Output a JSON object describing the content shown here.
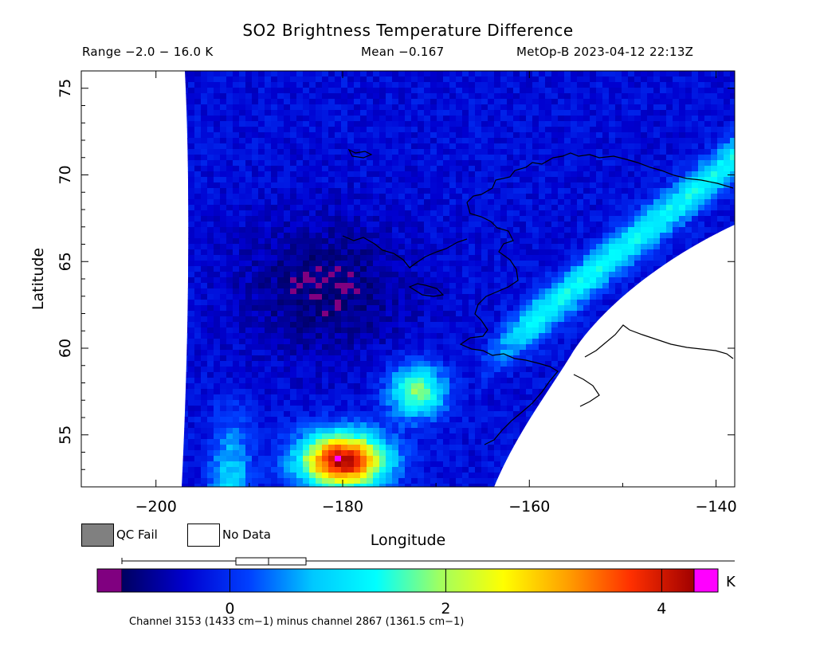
{
  "header": {
    "title": "SO2 Brightness Temperature Difference",
    "range": "Range −2.0 − 16.0 K",
    "mean": "Mean −0.167",
    "source": "MetOp-B 2023-04-12 22:13Z"
  },
  "legend": {
    "qc_fail": "QC Fail",
    "no_data": "No Data",
    "qc_fail_color": "#808080",
    "no_data_color": "#ffffff"
  },
  "colorbar": {
    "unit": "K",
    "ticks": [
      "0",
      "2",
      "4"
    ],
    "tick_values": [
      0,
      2,
      4
    ],
    "range": [
      -1.0,
      4.3
    ],
    "under_color": "#800080",
    "over_color": "#ff00ff",
    "colormap": [
      "#000060",
      "#0000d0",
      "#0040ff",
      "#00c8ff",
      "#00ffff",
      "#a0ff60",
      "#ffff00",
      "#ffa000",
      "#ff3000",
      "#a00000"
    ]
  },
  "footnote": "Channel 3153 (1433 cm−1) minus channel 2867 (1361.5 cm−1)",
  "chart_data": {
    "type": "heatmap",
    "title": "SO2 Brightness Temperature Difference",
    "xlabel": "Longitude",
    "ylabel": "Latitude",
    "xlim": [
      -208,
      -138
    ],
    "ylim": [
      52,
      76
    ],
    "x_ticks": [
      -200,
      -180,
      -160,
      -140
    ],
    "y_ticks": [
      55,
      60,
      65,
      70,
      75
    ],
    "x_tick_labels": [
      "−200",
      "−180",
      "−160",
      "−140"
    ],
    "y_tick_labels": [
      "55",
      "60",
      "65",
      "70",
      "75"
    ],
    "grid": false,
    "value_range": [
      -2.0,
      16.0
    ],
    "mean": -0.167,
    "units": "K",
    "features": {
      "background_bt_diff": -0.3,
      "low_region": {
        "lon": -182,
        "lat": 63.5,
        "value": -0.9
      },
      "high_band": {
        "lon_start": -162,
        "lat_start": 60.5,
        "lon_end": -139,
        "lat_end": 70.5,
        "value": 1.3
      },
      "hotspot": {
        "lon": -180,
        "lat": 53.5,
        "value": 4.3
      }
    }
  }
}
